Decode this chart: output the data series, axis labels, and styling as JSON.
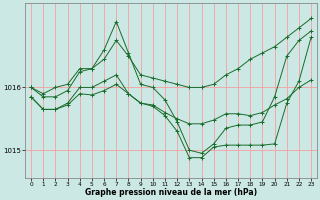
{
  "xlabel": "Graphe pression niveau de la mer (hPa)",
  "background_color": "#cce8e4",
  "grid_color": "#f5a0a0",
  "line_color": "#1a6b2a",
  "x_range": [
    -0.5,
    23.5
  ],
  "y_range": [
    1014.55,
    1017.35
  ],
  "yticks": [
    1015,
    1016
  ],
  "xticks": [
    0,
    1,
    2,
    3,
    4,
    5,
    6,
    7,
    8,
    9,
    10,
    11,
    12,
    13,
    14,
    15,
    16,
    17,
    18,
    19,
    20,
    21,
    22,
    23
  ],
  "line1": [
    1016.0,
    1015.9,
    1016.0,
    1016.05,
    1016.3,
    1016.3,
    1016.45,
    1016.75,
    1016.5,
    1016.2,
    1016.15,
    1016.1,
    1016.05,
    1016.0,
    1016.0,
    1016.05,
    1016.2,
    1016.3,
    1016.45,
    1016.55,
    1016.65,
    1016.8,
    1016.95,
    1017.1
  ],
  "line2": [
    1016.0,
    1015.85,
    1015.85,
    1015.95,
    1016.25,
    1016.3,
    1016.6,
    1017.05,
    1016.55,
    1016.05,
    1016.0,
    1015.8,
    1015.45,
    1015.0,
    1014.95,
    1015.1,
    1015.35,
    1015.4,
    1015.4,
    1015.45,
    1015.85,
    1016.5,
    1016.75,
    1016.9
  ],
  "line3": [
    1015.85,
    1015.65,
    1015.65,
    1015.75,
    1016.0,
    1016.0,
    1016.1,
    1016.2,
    1015.9,
    1015.75,
    1015.7,
    1015.55,
    1015.3,
    1014.88,
    1014.88,
    1015.05,
    1015.08,
    1015.08,
    1015.08,
    1015.08,
    1015.1,
    1015.75,
    1016.1,
    1016.8
  ],
  "line4": [
    1015.85,
    1015.65,
    1015.65,
    1015.72,
    1015.9,
    1015.88,
    1015.95,
    1016.05,
    1015.9,
    1015.75,
    1015.72,
    1015.6,
    1015.5,
    1015.42,
    1015.42,
    1015.48,
    1015.58,
    1015.58,
    1015.55,
    1015.6,
    1015.72,
    1015.82,
    1016.0,
    1016.12
  ]
}
